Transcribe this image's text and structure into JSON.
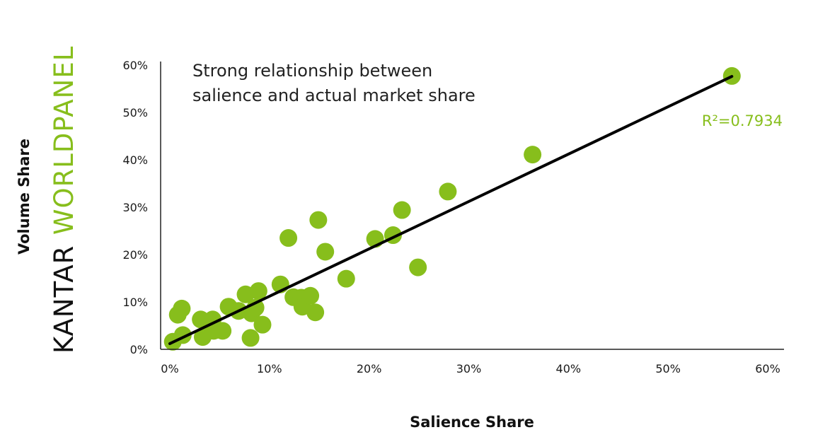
{
  "chart_data": {
    "type": "scatter",
    "title": "",
    "xlabel": "Salience Share",
    "ylabel": "Volume Share",
    "xlim": [
      0,
      60
    ],
    "ylim": [
      0,
      60
    ],
    "x_ticks": [
      "0%",
      "10%",
      "20%",
      "30%",
      "40%",
      "50%",
      "60%"
    ],
    "y_ticks": [
      "0%",
      "10%",
      "20%",
      "30%",
      "40%",
      "50%",
      "60%"
    ],
    "points": [
      {
        "x": 0.3,
        "y": 1.6
      },
      {
        "x": 0.8,
        "y": 7.3
      },
      {
        "x": 1.2,
        "y": 8.6
      },
      {
        "x": 1.3,
        "y": 3.0
      },
      {
        "x": 3.1,
        "y": 6.3
      },
      {
        "x": 3.3,
        "y": 2.6
      },
      {
        "x": 4.3,
        "y": 6.3
      },
      {
        "x": 4.4,
        "y": 3.9
      },
      {
        "x": 5.3,
        "y": 3.9
      },
      {
        "x": 5.9,
        "y": 9.0
      },
      {
        "x": 6.9,
        "y": 8.1
      },
      {
        "x": 7.6,
        "y": 11.6
      },
      {
        "x": 8.1,
        "y": 2.4
      },
      {
        "x": 8.2,
        "y": 7.6
      },
      {
        "x": 8.6,
        "y": 8.8
      },
      {
        "x": 8.9,
        "y": 12.3
      },
      {
        "x": 9.3,
        "y": 5.2
      },
      {
        "x": 11.1,
        "y": 13.7
      },
      {
        "x": 11.9,
        "y": 23.5
      },
      {
        "x": 12.4,
        "y": 11.0
      },
      {
        "x": 13.2,
        "y": 10.9
      },
      {
        "x": 13.3,
        "y": 9.0
      },
      {
        "x": 14.1,
        "y": 11.3
      },
      {
        "x": 14.6,
        "y": 7.8
      },
      {
        "x": 14.9,
        "y": 27.3
      },
      {
        "x": 15.6,
        "y": 20.6
      },
      {
        "x": 17.7,
        "y": 14.9
      },
      {
        "x": 20.6,
        "y": 23.3
      },
      {
        "x": 22.4,
        "y": 24.1
      },
      {
        "x": 23.3,
        "y": 29.4
      },
      {
        "x": 24.9,
        "y": 17.3
      },
      {
        "x": 27.9,
        "y": 33.3
      },
      {
        "x": 36.4,
        "y": 41.1
      },
      {
        "x": 56.4,
        "y": 57.7
      }
    ],
    "trendline": {
      "x": [
        0,
        56.4
      ],
      "y": [
        1.2,
        57.6
      ]
    },
    "annotation_lines": [
      "Strong relationship between",
      "salience and actual market share"
    ],
    "r_squared_label": "R²=0.7934",
    "grid": false,
    "legend": "none"
  },
  "brand": {
    "part1": "KANTAR",
    "part2": "WORLDPANEL"
  },
  "colors": {
    "point": "#87BE1C",
    "trendline": "#000000",
    "r_squared": "#87BE1C",
    "brand_dark": "#111111",
    "brand_green": "#87BE1C",
    "axis": "#222222"
  }
}
